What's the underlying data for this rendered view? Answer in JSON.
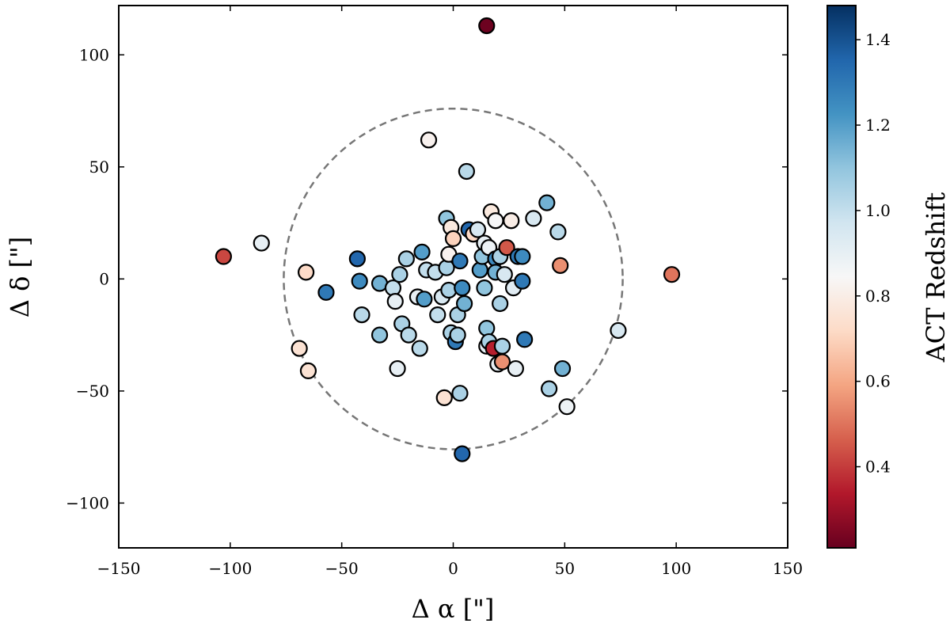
{
  "chart_data": {
    "type": "scatter",
    "xlabel": "Δ α [\"]",
    "ylabel": "Δ δ [\"]",
    "xlim": [
      -150,
      150
    ],
    "ylim": [
      -120,
      122
    ],
    "xticks": [
      -150,
      -100,
      -50,
      0,
      50,
      100,
      150
    ],
    "yticks": [
      -100,
      -50,
      0,
      50,
      100
    ],
    "xtick_labels": [
      "−150",
      "−100",
      "−50",
      "0",
      "50",
      "100",
      "150"
    ],
    "ytick_labels": [
      "−100",
      "−50",
      "0",
      "50",
      "100"
    ],
    "grid": false,
    "colorbar": {
      "label": "ACT Redshift",
      "colormap": "RdBu",
      "range": [
        0.21,
        1.48
      ],
      "ticks": [
        0.4,
        0.6,
        0.8,
        1.0,
        1.2,
        1.4
      ],
      "tick_labels": [
        "0.4",
        "0.6",
        "0.8",
        "1.0",
        "1.2",
        "1.4"
      ]
    },
    "reference_circle": {
      "center": [
        0,
        0
      ],
      "radius": 76,
      "color": "#777777",
      "style": "dashed"
    },
    "points": [
      {
        "x": 15,
        "y": 113,
        "z": 0.22
      },
      {
        "x": -103,
        "y": 10,
        "z": 0.42
      },
      {
        "x": -86,
        "y": 16,
        "z": 0.9
      },
      {
        "x": 98,
        "y": 2,
        "z": 0.5
      },
      {
        "x": 74,
        "y": -23,
        "z": 0.95
      },
      {
        "x": 51,
        "y": -57,
        "z": 0.88
      },
      {
        "x": -69,
        "y": -31,
        "z": 0.75
      },
      {
        "x": -65,
        "y": -41,
        "z": 0.75
      },
      {
        "x": -66,
        "y": 3,
        "z": 0.72
      },
      {
        "x": -57,
        "y": -6,
        "z": 1.3
      },
      {
        "x": -43,
        "y": 9,
        "z": 1.35
      },
      {
        "x": -42,
        "y": -1,
        "z": 1.25
      },
      {
        "x": -41,
        "y": -16,
        "z": 1.02
      },
      {
        "x": -33,
        "y": -2,
        "z": 1.15
      },
      {
        "x": -33,
        "y": -25,
        "z": 1.1
      },
      {
        "x": -27,
        "y": -4,
        "z": 1.0
      },
      {
        "x": -26,
        "y": -10,
        "z": 0.9
      },
      {
        "x": -25,
        "y": -40,
        "z": 0.9
      },
      {
        "x": -24,
        "y": 2,
        "z": 1.05
      },
      {
        "x": -23,
        "y": -20,
        "z": 1.05
      },
      {
        "x": -21,
        "y": 9,
        "z": 1.05
      },
      {
        "x": -20,
        "y": -25,
        "z": 1.02
      },
      {
        "x": -16,
        "y": -8,
        "z": 0.9
      },
      {
        "x": -15,
        "y": -31,
        "z": 1.02
      },
      {
        "x": -14,
        "y": 12,
        "z": 1.2
      },
      {
        "x": -13,
        "y": -9,
        "z": 1.2
      },
      {
        "x": -12,
        "y": 4,
        "z": 1.0
      },
      {
        "x": -11,
        "y": 62,
        "z": 0.82
      },
      {
        "x": -8,
        "y": 3,
        "z": 1.0
      },
      {
        "x": -7,
        "y": -16,
        "z": 1.0
      },
      {
        "x": -5,
        "y": -8,
        "z": 0.95
      },
      {
        "x": -4,
        "y": -53,
        "z": 0.75
      },
      {
        "x": -3,
        "y": 27,
        "z": 1.1
      },
      {
        "x": -3,
        "y": 5,
        "z": 1.05
      },
      {
        "x": -2,
        "y": 11,
        "z": 0.82
      },
      {
        "x": -2,
        "y": -5,
        "z": 1.05
      },
      {
        "x": -1,
        "y": -24,
        "z": 1.05
      },
      {
        "x": -1,
        "y": 23,
        "z": 0.78
      },
      {
        "x": 0,
        "y": 18,
        "z": 0.7
      },
      {
        "x": 1,
        "y": -28,
        "z": 1.3
      },
      {
        "x": 2,
        "y": -16,
        "z": 1.05
      },
      {
        "x": 2,
        "y": -25,
        "z": 1.05
      },
      {
        "x": 3,
        "y": 8,
        "z": 1.3
      },
      {
        "x": 3,
        "y": -51,
        "z": 1.05
      },
      {
        "x": 4,
        "y": -4,
        "z": 1.25
      },
      {
        "x": 4,
        "y": -78,
        "z": 1.35
      },
      {
        "x": 5,
        "y": -11,
        "z": 1.15
      },
      {
        "x": 6,
        "y": 48,
        "z": 1.02
      },
      {
        "x": 7,
        "y": 22,
        "z": 1.35
      },
      {
        "x": 9,
        "y": 20,
        "z": 0.72
      },
      {
        "x": 11,
        "y": 22,
        "z": 0.95
      },
      {
        "x": 12,
        "y": 4,
        "z": 1.2
      },
      {
        "x": 13,
        "y": 10,
        "z": 1.1
      },
      {
        "x": 14,
        "y": 16,
        "z": 0.9
      },
      {
        "x": 14,
        "y": -4,
        "z": 1.1
      },
      {
        "x": 15,
        "y": -30,
        "z": 0.9
      },
      {
        "x": 15,
        "y": -22,
        "z": 1.1
      },
      {
        "x": 16,
        "y": -28,
        "z": 1.05
      },
      {
        "x": 16,
        "y": 14,
        "z": 0.88
      },
      {
        "x": 17,
        "y": 30,
        "z": 0.78
      },
      {
        "x": 18,
        "y": -31,
        "z": 0.35
      },
      {
        "x": 19,
        "y": 26,
        "z": 0.85
      },
      {
        "x": 19,
        "y": 9,
        "z": 1.25
      },
      {
        "x": 19,
        "y": 3,
        "z": 1.15
      },
      {
        "x": 20,
        "y": -38,
        "z": 0.9
      },
      {
        "x": 21,
        "y": 10,
        "z": 1.05
      },
      {
        "x": 21,
        "y": -11,
        "z": 1.05
      },
      {
        "x": 22,
        "y": -30,
        "z": 1.05
      },
      {
        "x": 22,
        "y": -37,
        "z": 0.55
      },
      {
        "x": 23,
        "y": 2,
        "z": 0.95
      },
      {
        "x": 24,
        "y": 14,
        "z": 0.45
      },
      {
        "x": 26,
        "y": 26,
        "z": 0.8
      },
      {
        "x": 27,
        "y": -4,
        "z": 0.92
      },
      {
        "x": 28,
        "y": -40,
        "z": 0.9
      },
      {
        "x": 29,
        "y": 10,
        "z": 1.3
      },
      {
        "x": 31,
        "y": 10,
        "z": 1.25
      },
      {
        "x": 31,
        "y": -1,
        "z": 1.3
      },
      {
        "x": 32,
        "y": -27,
        "z": 1.3
      },
      {
        "x": 36,
        "y": 27,
        "z": 0.95
      },
      {
        "x": 42,
        "y": 34,
        "z": 1.15
      },
      {
        "x": 43,
        "y": -49,
        "z": 1.05
      },
      {
        "x": 47,
        "y": 21,
        "z": 1.02
      },
      {
        "x": 48,
        "y": 6,
        "z": 0.55
      },
      {
        "x": 49,
        "y": -40,
        "z": 1.15
      }
    ]
  }
}
